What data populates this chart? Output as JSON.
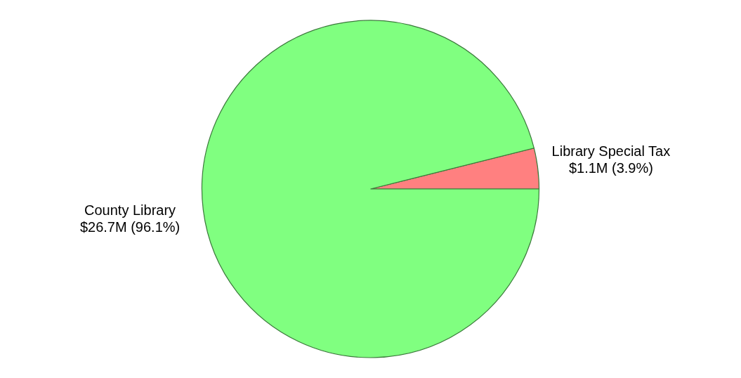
{
  "chart_data": {
    "type": "pie",
    "categories": [
      "Library Special Tax",
      "County Library"
    ],
    "values": [
      3.9,
      96.1
    ],
    "value_labels": [
      "$1.1M (3.9%)",
      "$26.7M (96.1%)"
    ],
    "colors": [
      "#ff8080",
      "#80ff80"
    ],
    "legend": false
  }
}
